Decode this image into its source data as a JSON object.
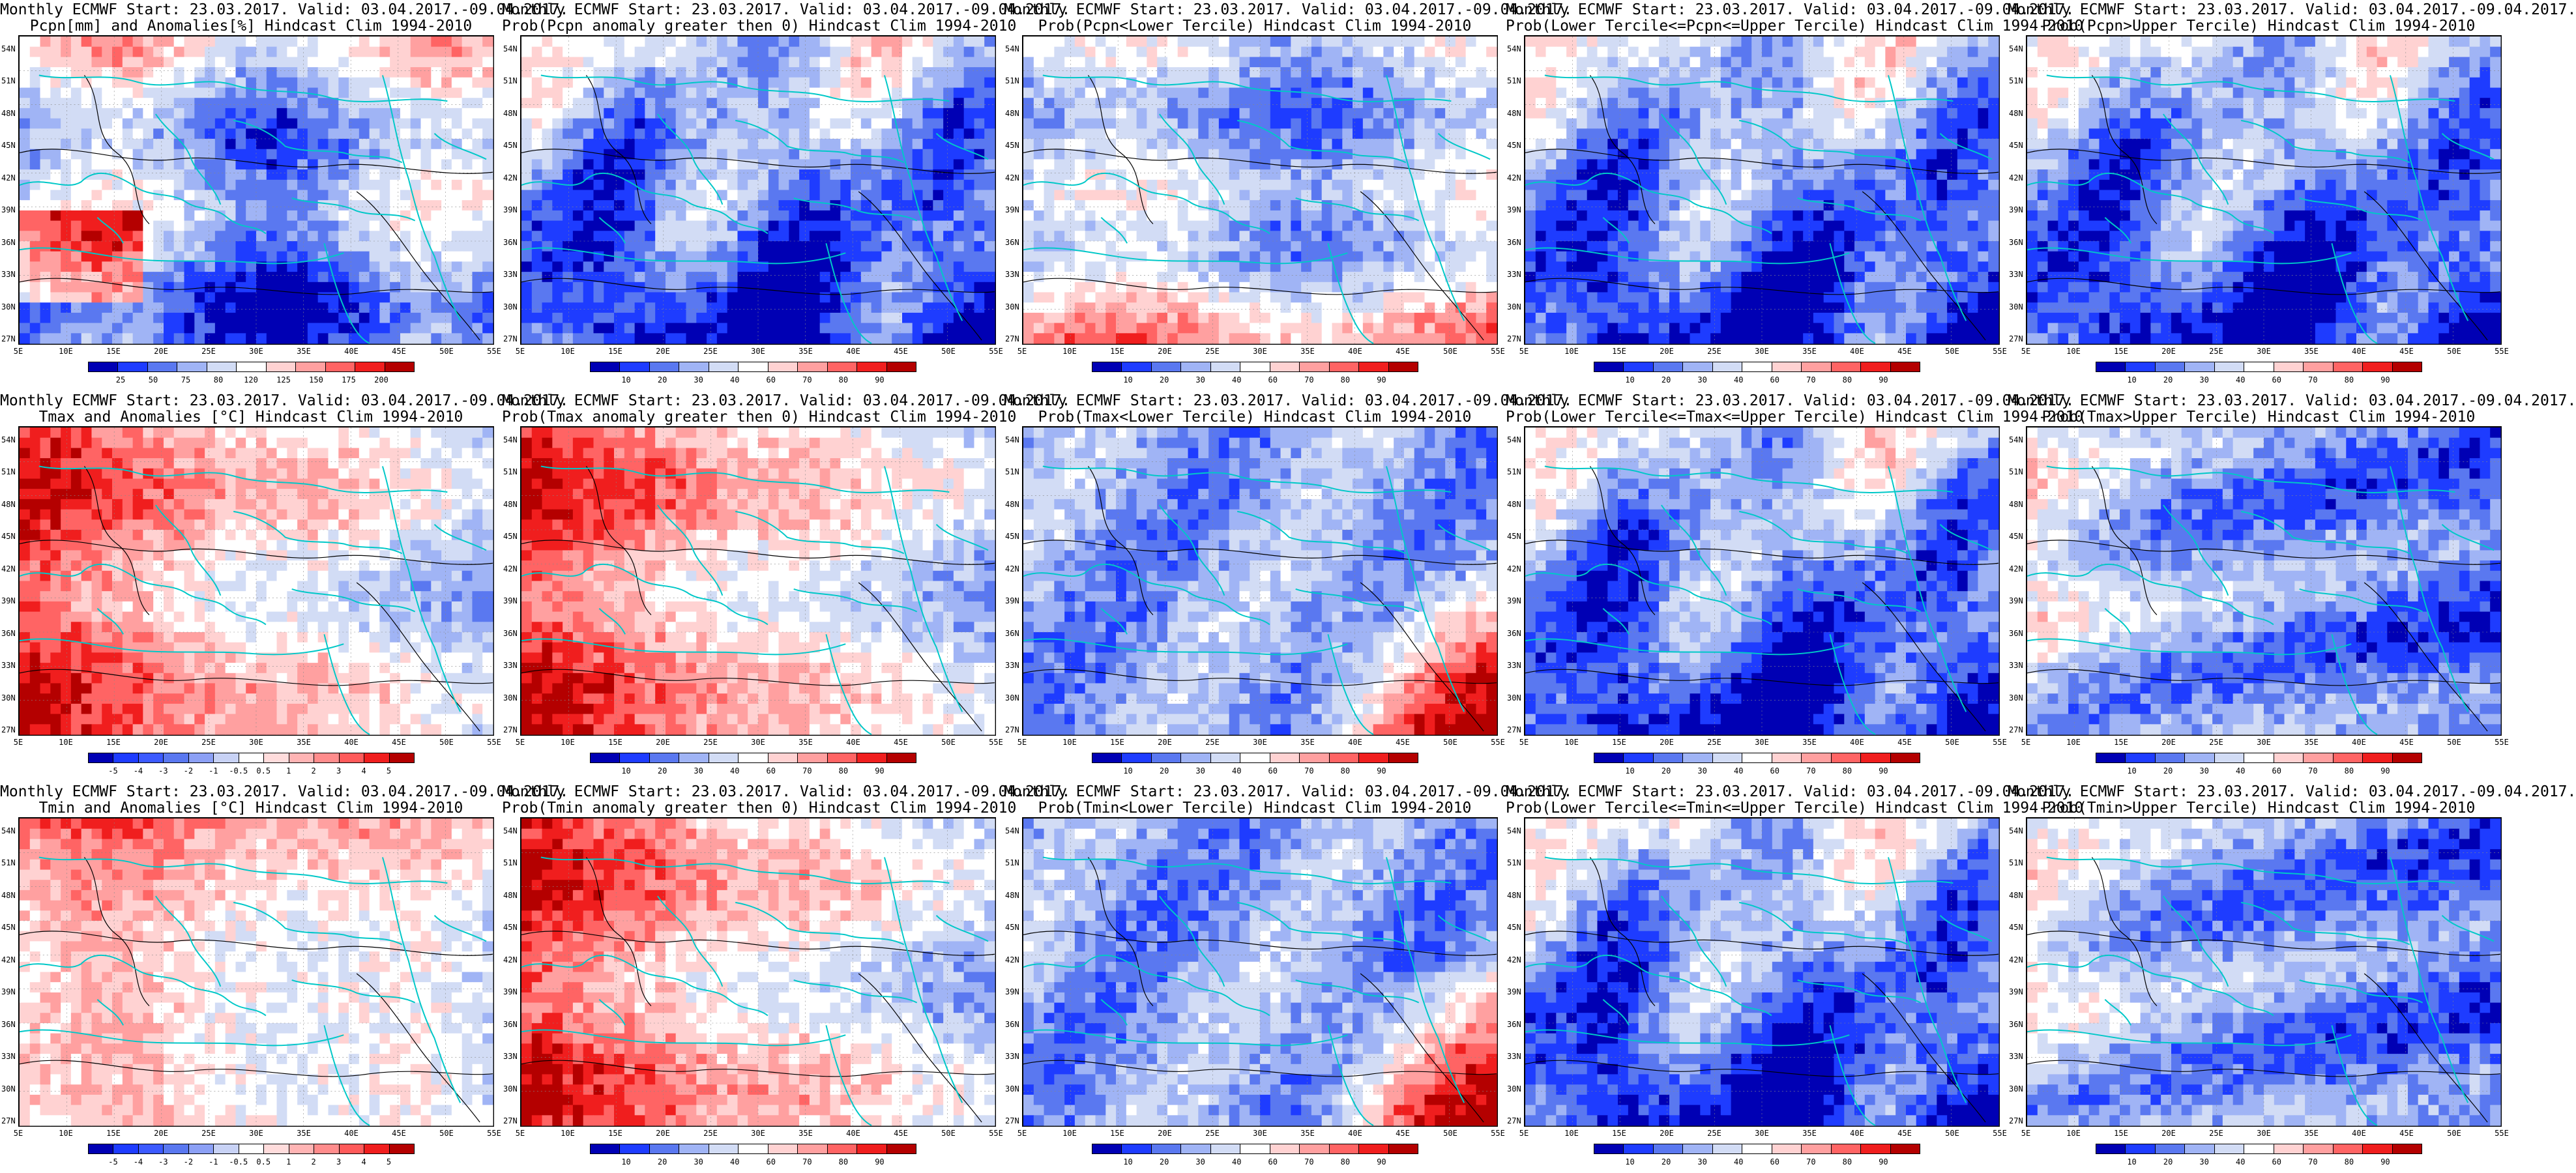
{
  "rows": [
    {
      "key": "pcpn",
      "panels": [
        {
          "title1": "Monthly ECMWF Start: 23.03.2017. Valid: 03.04.2017.-09.04.2017.",
          "title2": "Pcpn[mm] and Anomalies[%] Hindcast Clim 1994-2010",
          "scale": "anom_pcpn",
          "pattern": "dry"
        },
        {
          "title1": "Monthly ECMWF Start: 23.03.2017. Valid: 03.04.2017.-09.04.2017.",
          "title2": "Prob(Pcpn anomaly greater then 0) Hindcast Clim 1994-2010",
          "scale": "prob",
          "pattern": "blue"
        },
        {
          "title1": "Monthly ECMWF Start: 23.03.2017. Valid: 03.04.2017.-09.04.2017.",
          "title2": "Prob(Pcpn<Lower Tercile) Hindcast Clim 1994-2010",
          "scale": "prob",
          "pattern": "redsouth"
        },
        {
          "title1": "Monthly ECMWF Start: 23.03.2017. Valid: 03.04.2017.-09.04.2017.",
          "title2": "Prob(Lower Tercile<=Pcpn<=Upper Tercile) Hindcast Clim 1994-2010",
          "scale": "prob",
          "pattern": "blue"
        },
        {
          "title1": "Monthly ECMWF Start: 23.03.2017. Valid: 03.04.2017.-09.04.2017.",
          "title2": "Prob(Pcpn>Upper Tercile) Hindcast Clim 1994-2010",
          "scale": "prob",
          "pattern": "blue"
        }
      ]
    },
    {
      "key": "tmax",
      "panels": [
        {
          "title1": "Monthly ECMWF Start: 23.03.2017. Valid: 03.04.2017.-09.04.2017.",
          "title2": "Tmax and Anomalies [°C] Hindcast Clim 1994-2010",
          "scale": "anom_t",
          "pattern": "redwest"
        },
        {
          "title1": "Monthly ECMWF Start: 23.03.2017. Valid: 03.04.2017.-09.04.2017.",
          "title2": "Prob(Tmax anomaly greater then 0) Hindcast Clim 1994-2010",
          "scale": "prob",
          "pattern": "redwest"
        },
        {
          "title1": "Monthly ECMWF Start: 23.03.2017. Valid: 03.04.2017.-09.04.2017.",
          "title2": "Prob(Tmax<Lower Tercile) Hindcast Clim 1994-2010",
          "scale": "prob",
          "pattern": "blueredse"
        },
        {
          "title1": "Monthly ECMWF Start: 23.03.2017. Valid: 03.04.2017.-09.04.2017.",
          "title2": "Prob(Lower Tercile<=Tmax<=Upper Tercile) Hindcast Clim 1994-2010",
          "scale": "prob",
          "pattern": "blue"
        },
        {
          "title1": "Monthly ECMWF Start: 23.03.2017. Valid: 03.04.2017.-09.04.2017.",
          "title2": "Prob(Tmax>Upper Tercile) Hindcast Clim 1994-2010",
          "scale": "prob",
          "pattern": "redwestblue"
        }
      ]
    },
    {
      "key": "tmin",
      "panels": [
        {
          "title1": "Monthly ECMWF Start: 23.03.2017. Valid: 03.04.2017.-09.04.2017.",
          "title2": "Tmin and Anomalies [°C] Hindcast Clim 1994-2010",
          "scale": "anom_t",
          "pattern": "rednorth"
        },
        {
          "title1": "Monthly ECMWF Start: 23.03.2017. Valid: 03.04.2017.-09.04.2017.",
          "title2": "Prob(Tmin anomaly greater then 0) Hindcast Clim 1994-2010",
          "scale": "prob",
          "pattern": "redwest"
        },
        {
          "title1": "Monthly ECMWF Start: 23.03.2017. Valid: 03.04.2017.-09.04.2017.",
          "title2": "Prob(Tmin<Lower Tercile) Hindcast Clim 1994-2010",
          "scale": "prob",
          "pattern": "blueredse"
        },
        {
          "title1": "Monthly ECMWF Start: 23.03.2017. Valid: 03.04.2017.-09.04.2017.",
          "title2": "Prob(Lower Tercile<=Tmin<=Upper Tercile) Hindcast Clim 1994-2010",
          "scale": "prob",
          "pattern": "blue"
        },
        {
          "title1": "Monthly ECMWF Start: 23.03.2017. Valid: 03.04.2017.-09.04.2017.",
          "title2": "Prob(Tmin>Upper Tercile) Hindcast Clim 1994-2010",
          "scale": "prob",
          "pattern": "redwestblue"
        }
      ]
    }
  ],
  "lat_labels": [
    "54N",
    "51N",
    "48N",
    "45N",
    "42N",
    "39N",
    "36N",
    "33N",
    "30N",
    "27N"
  ],
  "lon_labels": [
    "5E",
    "10E",
    "15E",
    "20E",
    "25E",
    "30E",
    "35E",
    "40E",
    "45E",
    "50E",
    "55E"
  ],
  "scales": {
    "prob": {
      "ticks": [
        "10",
        "20",
        "30",
        "40",
        "60",
        "70",
        "80",
        "90"
      ],
      "colors": [
        "#0000b4",
        "#1e3cff",
        "#5a78f0",
        "#a0b4f5",
        "#d2dcf5",
        "#ffffff",
        "#ffd2d2",
        "#ffa0a0",
        "#ff6464",
        "#f01e1e",
        "#b40000"
      ]
    },
    "anom_t": {
      "ticks": [
        "-5",
        "-4",
        "-3",
        "-2",
        "-1",
        "-0.5",
        "0.5",
        "1",
        "2",
        "3",
        "4",
        "5"
      ],
      "colors": [
        "#0000b4",
        "#1e3cff",
        "#3c5aff",
        "#5a78f0",
        "#8ca0f5",
        "#c8d2f5",
        "#ffffff",
        "#ffdcdc",
        "#ffb4b4",
        "#ff8c8c",
        "#ff5a5a",
        "#f01e1e",
        "#b40000"
      ]
    },
    "anom_pcpn": {
      "ticks": [
        "25",
        "50",
        "75",
        "80",
        "120",
        "125",
        "150",
        "175",
        "200"
      ],
      "colors": [
        "#0000b4",
        "#1e3cff",
        "#5a78f0",
        "#a0b4f5",
        "#d2dcf5",
        "#ffffff",
        "#ffd2d2",
        "#ffa0a0",
        "#ff6464",
        "#f01e1e",
        "#b40000"
      ]
    }
  },
  "colors": {
    "coast": "#00c8c8",
    "contour": "#000000",
    "frame": "#000000"
  }
}
